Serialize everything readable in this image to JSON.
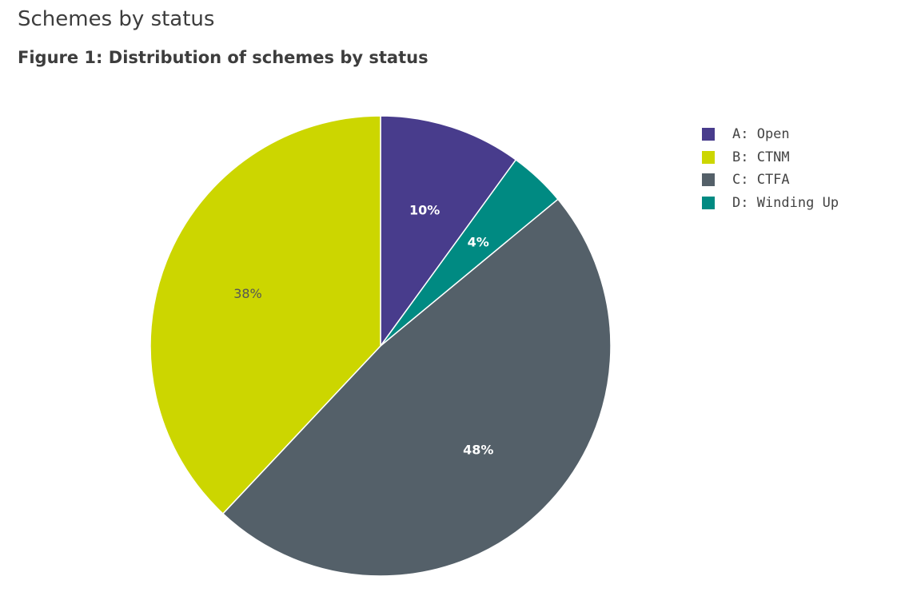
{
  "header": {
    "title": "Schemes by status",
    "figure_title": "Figure 1: Distribution of schemes by status"
  },
  "chart_data": {
    "type": "pie",
    "categories": [
      "A: Open",
      "D: Winding Up",
      "C: CTFA",
      "B: CTNM"
    ],
    "values": [
      10,
      4,
      48,
      38
    ],
    "data_labels": [
      "10%",
      "4%",
      "48%",
      "38%"
    ],
    "colors": [
      "#483c8c",
      "#008a82",
      "#546069",
      "#ccd600"
    ],
    "label_colors": [
      "#ffffff",
      "#ffffff",
      "#ffffff",
      "#555555"
    ],
    "label_bold": [
      true,
      true,
      true,
      false
    ],
    "legend": {
      "placement": "top-right",
      "entries": [
        {
          "label": "A: Open",
          "color": "#483c8c"
        },
        {
          "label": "B: CTNM",
          "color": "#ccd600"
        },
        {
          "label": "C: CTFA",
          "color": "#546069"
        },
        {
          "label": "D: Winding Up",
          "color": "#008a82"
        }
      ]
    }
  }
}
